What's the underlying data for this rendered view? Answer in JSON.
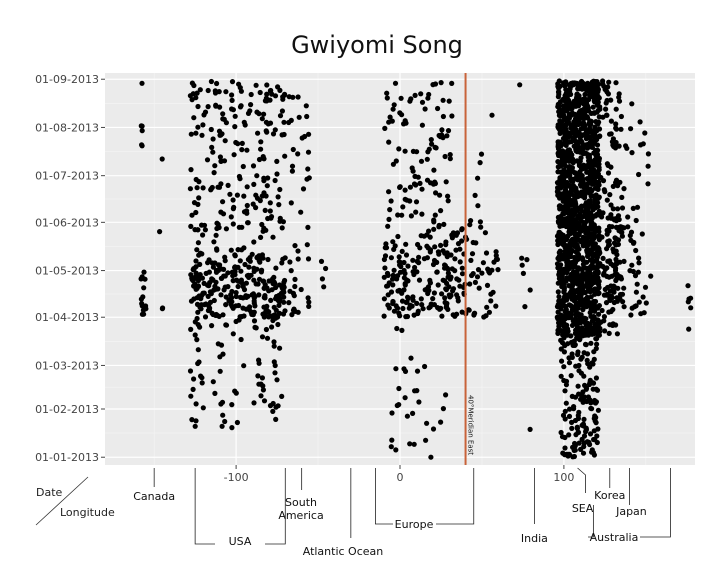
{
  "chart_data": {
    "type": "scatter",
    "title": "Gwiyomi Song",
    "xlabel": "Longitude",
    "ylabel": "Date",
    "xlim": [
      -180,
      180
    ],
    "ylim": [
      "2012-12-27",
      "2013-09-05"
    ],
    "x_ticks": [
      {
        "value": -100,
        "label": "-100"
      },
      {
        "value": 0,
        "label": "0"
      },
      {
        "value": 100,
        "label": "100"
      }
    ],
    "y_ticks": [
      {
        "value": "2013-01-01",
        "label": "01-01-2013"
      },
      {
        "value": "2013-02-01",
        "label": "01-02-2013"
      },
      {
        "value": "2013-03-01",
        "label": "01-03-2013"
      },
      {
        "value": "2013-04-01",
        "label": "01-04-2013"
      },
      {
        "value": "2013-05-01",
        "label": "01-05-2013"
      },
      {
        "value": "2013-06-01",
        "label": "01-06-2013"
      },
      {
        "value": "2013-07-01",
        "label": "01-07-2013"
      },
      {
        "value": "2013-08-01",
        "label": "01-08-2013"
      },
      {
        "value": "2013-09-01",
        "label": "01-09-2013"
      }
    ],
    "reference_line": {
      "x": 40,
      "label": "40°Meridian East",
      "color": "#c8633a"
    },
    "grid": true,
    "point_color": "#000000",
    "background_color": "#ebebeb",
    "regions": [
      {
        "label": "Canada",
        "x": [
          -150,
          -150
        ]
      },
      {
        "label": "USA",
        "x": [
          -125,
          -70
        ]
      },
      {
        "label": "South America",
        "x": [
          -60,
          -60
        ]
      },
      {
        "label": "Atlantic Ocean",
        "x": [
          -30,
          -30
        ]
      },
      {
        "label": "Europe",
        "x": [
          -15,
          45
        ]
      },
      {
        "label": "India",
        "x": [
          82,
          82
        ]
      },
      {
        "label": "SEA",
        "x": [
          112,
          112
        ]
      },
      {
        "label": "Australia",
        "x": [
          118,
          165
        ]
      },
      {
        "label": "Korea",
        "x": [
          128,
          128
        ]
      },
      {
        "label": "Japan",
        "x": [
          140,
          140
        ]
      }
    ],
    "clusters": [
      {
        "x": [
          -158,
          -155
        ],
        "dates": [
          "2013-04-01",
          "2013-05-01"
        ],
        "n": 14
      },
      {
        "x": [
          -158,
          -157
        ],
        "dates": [
          "2013-07-10",
          "2013-08-30"
        ],
        "n": 6
      },
      {
        "x": [
          -148,
          -146
        ],
        "dates": [
          "2013-05-25",
          "2013-05-31"
        ],
        "n": 1
      },
      {
        "x": [
          -146,
          -144
        ],
        "dates": [
          "2013-04-05",
          "2013-04-10"
        ],
        "n": 2
      },
      {
        "x": [
          -146,
          -144
        ],
        "dates": [
          "2013-07-10",
          "2013-07-16"
        ],
        "n": 1
      },
      {
        "x": [
          -128,
          -118
        ],
        "dates": [
          "2013-04-01",
          "2013-05-05"
        ],
        "n": 45
      },
      {
        "x": [
          -128,
          -120
        ],
        "dates": [
          "2013-01-20",
          "2013-04-01"
        ],
        "n": 22
      },
      {
        "x": [
          -128,
          -115
        ],
        "dates": [
          "2013-05-05",
          "2013-08-31"
        ],
        "n": 50
      },
      {
        "x": [
          -118,
          -95
        ],
        "dates": [
          "2013-04-01",
          "2013-05-10"
        ],
        "n": 90
      },
      {
        "x": [
          -115,
          -95
        ],
        "dates": [
          "2013-05-10",
          "2013-08-31"
        ],
        "n": 80
      },
      {
        "x": [
          -115,
          -95
        ],
        "dates": [
          "2013-01-15",
          "2013-04-01"
        ],
        "n": 25
      },
      {
        "x": [
          -95,
          -70
        ],
        "dates": [
          "2013-04-01",
          "2013-05-10"
        ],
        "n": 110
      },
      {
        "x": [
          -95,
          -70
        ],
        "dates": [
          "2013-05-10",
          "2013-08-31"
        ],
        "n": 95
      },
      {
        "x": [
          -90,
          -72
        ],
        "dates": [
          "2013-02-01",
          "2013-04-01"
        ],
        "n": 30
      },
      {
        "x": [
          -78,
          -74
        ],
        "dates": [
          "2013-01-25",
          "2013-02-05"
        ],
        "n": 5
      },
      {
        "x": [
          -68,
          -55
        ],
        "dates": [
          "2013-04-01",
          "2013-08-31"
        ],
        "n": 45
      },
      {
        "x": [
          -48,
          -45
        ],
        "dates": [
          "2013-04-20",
          "2013-05-10"
        ],
        "n": 4
      },
      {
        "x": [
          -10,
          30
        ],
        "dates": [
          "2013-04-01",
          "2013-05-20"
        ],
        "n": 150
      },
      {
        "x": [
          -10,
          32
        ],
        "dates": [
          "2013-05-20",
          "2013-08-31"
        ],
        "n": 110
      },
      {
        "x": [
          -6,
          30
        ],
        "dates": [
          "2013-01-01",
          "2013-04-01"
        ],
        "n": 30
      },
      {
        "x": [
          30,
          42
        ],
        "dates": [
          "2013-04-01",
          "2013-05-31"
        ],
        "n": 45
      },
      {
        "x": [
          42,
          60
        ],
        "dates": [
          "2013-04-01",
          "2013-05-15"
        ],
        "n": 35
      },
      {
        "x": [
          42,
          56
        ],
        "dates": [
          "2013-05-15",
          "2013-07-20"
        ],
        "n": 12
      },
      {
        "x": [
          54,
          58
        ],
        "dates": [
          "2013-08-05",
          "2013-08-10"
        ],
        "n": 1
      },
      {
        "x": [
          74,
          80
        ],
        "dates": [
          "2013-04-01",
          "2013-05-10"
        ],
        "n": 6
      },
      {
        "x": [
          72,
          75
        ],
        "dates": [
          "2013-08-25",
          "2013-08-31"
        ],
        "n": 1
      },
      {
        "x": [
          78,
          81
        ],
        "dates": [
          "2013-01-18",
          "2013-01-24"
        ],
        "n": 1
      },
      {
        "x": [
          96,
          122
        ],
        "dates": [
          "2013-03-20",
          "2013-08-31"
        ],
        "n": 1300
      },
      {
        "x": [
          98,
          122
        ],
        "dates": [
          "2013-01-01",
          "2013-03-20"
        ],
        "n": 160
      },
      {
        "x": [
          122,
          136
        ],
        "dates": [
          "2013-03-20",
          "2013-08-31"
        ],
        "n": 130
      },
      {
        "x": [
          126,
          148
        ],
        "dates": [
          "2013-04-01",
          "2013-06-05"
        ],
        "n": 60
      },
      {
        "x": [
          136,
          152
        ],
        "dates": [
          "2013-05-20",
          "2013-08-20"
        ],
        "n": 18
      },
      {
        "x": [
          145,
          153
        ],
        "dates": [
          "2013-04-01",
          "2013-05-10"
        ],
        "n": 8
      },
      {
        "x": [
          175,
          178
        ],
        "dates": [
          "2013-03-20",
          "2013-04-25"
        ],
        "n": 6
      }
    ]
  }
}
